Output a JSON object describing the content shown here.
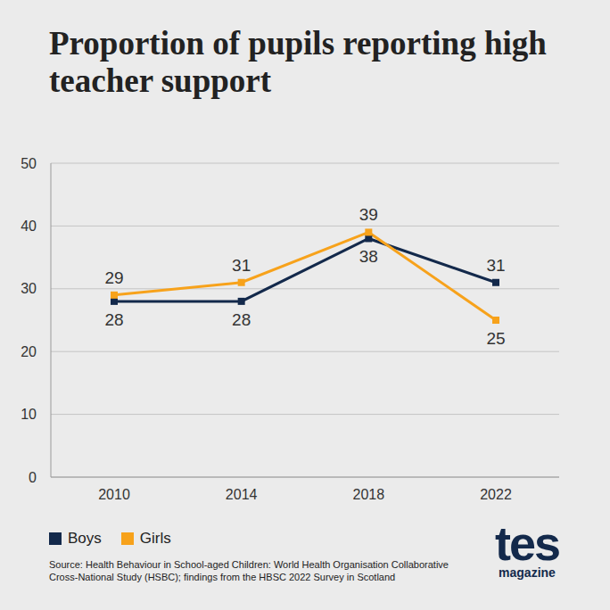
{
  "chart_data": {
    "type": "line",
    "title": "Proportion of pupils reporting high teacher support",
    "categories": [
      "2010",
      "2014",
      "2018",
      "2022"
    ],
    "series": [
      {
        "name": "Boys",
        "color": "#13294b",
        "values": [
          28,
          28,
          38,
          31
        ]
      },
      {
        "name": "Girls",
        "color": "#f7a21b",
        "values": [
          29,
          31,
          39,
          25
        ]
      }
    ],
    "ylim": [
      0,
      50
    ],
    "yticks": [
      0,
      10,
      20,
      30,
      40,
      50
    ],
    "grid": true,
    "legend": "bottom left",
    "marker": "square",
    "data_labels": true,
    "source": "Source: Health Behaviour in School-aged Children: World Health Organisation Collaborative Cross-National Study (HSBC); findings from the HBSC 2022 Survey in Scotland",
    "logo": "tes",
    "logo_subtitle": "magazine"
  }
}
